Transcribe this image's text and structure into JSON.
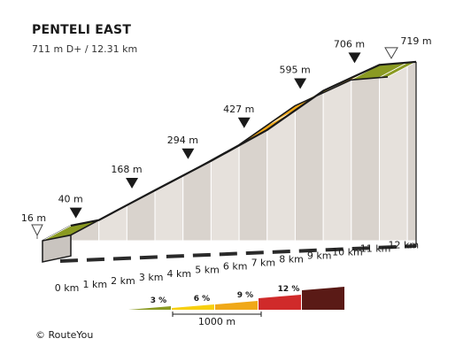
{
  "title": "PENTELI EAST",
  "subtitle": "711 m D+ / 12.31 km",
  "copyright": "© RouteYou",
  "colors": {
    "top_green": "#8a9a22",
    "side_green": "#6f7d1a",
    "top_orange": "#f0a818",
    "top_yellow": "#f7cf0f",
    "wall": "#e6e1dc",
    "wall_stripe": "#d9d3cd",
    "base_dark": "#2a2a2a",
    "outline": "#1a1a1a",
    "red": "#d02a2a",
    "darkred": "#5a1a16"
  },
  "chart_data": {
    "type": "area",
    "title": "PENTELI EAST",
    "subtitle": "711 m D+ / 12.31 km",
    "x_unit": "km",
    "y_unit": "m",
    "x_tick_labels": [
      "0 km",
      "1 km",
      "2 km",
      "3 km",
      "4 km",
      "5 km",
      "6 km",
      "7 km",
      "8 km",
      "9 km",
      "10 km",
      "11 km",
      "12 km"
    ],
    "profile": [
      {
        "km": 0,
        "ele": 16
      },
      {
        "km": 1,
        "ele": 40
      },
      {
        "km": 3,
        "ele": 168
      },
      {
        "km": 5,
        "ele": 294
      },
      {
        "km": 7,
        "ele": 427
      },
      {
        "km": 9,
        "ele": 595
      },
      {
        "km": 11,
        "ele": 706
      },
      {
        "km": 12.31,
        "ele": 719
      }
    ],
    "segments": [
      {
        "from_km": 0,
        "to_km": 1,
        "grade_class": "green"
      },
      {
        "from_km": 1,
        "to_km": 9,
        "grade_class": "orange"
      },
      {
        "from_km": 9,
        "to_km": 10,
        "grade_class": "yellow"
      },
      {
        "from_km": 10,
        "to_km": 11,
        "grade_class": "orange"
      },
      {
        "from_km": 11,
        "to_km": 12.31,
        "grade_class": "green"
      }
    ],
    "markers": [
      {
        "km": 0,
        "label": "16 m",
        "style": "start"
      },
      {
        "km": 1,
        "label": "40 m",
        "style": "filled"
      },
      {
        "km": 3,
        "label": "168 m",
        "style": "filled"
      },
      {
        "km": 5,
        "label": "294 m",
        "style": "filled"
      },
      {
        "km": 7,
        "label": "427 m",
        "style": "filled"
      },
      {
        "km": 9,
        "label": "595 m",
        "style": "filled"
      },
      {
        "km": 11,
        "label": "706 m",
        "style": "filled"
      },
      {
        "km": 12.31,
        "label": "719 m",
        "style": "end"
      }
    ],
    "legend": {
      "steps": [
        {
          "label": "3 %",
          "color": "green"
        },
        {
          "label": "6 %",
          "color": "yellow"
        },
        {
          "label": "9 %",
          "color": "orange"
        },
        {
          "label": "12 %",
          "color": "red"
        },
        {
          "label": "",
          "color": "darkred"
        }
      ],
      "scale_label": "1000 m"
    }
  }
}
